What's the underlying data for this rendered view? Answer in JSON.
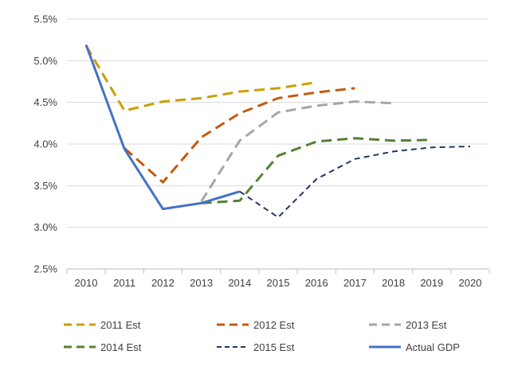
{
  "chart_data": {
    "type": "line",
    "x": [
      2010,
      2011,
      2012,
      2013,
      2014,
      2015,
      2016,
      2017,
      2018,
      2019,
      2020
    ],
    "x_tick_labels": [
      "2010",
      "2011",
      "2012",
      "2013",
      "2014",
      "2015",
      "2016",
      "2017",
      "2018",
      "2019",
      "2020"
    ],
    "y_tick_labels": [
      "2.5%",
      "3.0%",
      "3.5%",
      "4.0%",
      "4.5%",
      "5.0%",
      "5.5%"
    ],
    "y_ticks": [
      2.5,
      3.0,
      3.5,
      4.0,
      4.5,
      5.0,
      5.5
    ],
    "ylim": [
      2.5,
      5.5
    ],
    "xlim": [
      2010,
      2020
    ],
    "grid": "horizontal",
    "legend_position": "bottom",
    "series": [
      {
        "name": "2011 Est",
        "color": "#C9A000",
        "style": "dashed",
        "x": [
          2010,
          2011,
          2012,
          2013,
          2014,
          2015,
          2016
        ],
        "values": [
          5.18,
          4.4,
          4.51,
          4.55,
          4.63,
          4.67,
          4.74
        ]
      },
      {
        "name": "2012 Est",
        "color": "#C55A11",
        "style": "dashed",
        "x": [
          2011,
          2012,
          2013,
          2014,
          2015,
          2016,
          2017
        ],
        "values": [
          3.95,
          3.54,
          4.08,
          4.37,
          4.55,
          4.62,
          4.67
        ]
      },
      {
        "name": "2013 Est",
        "color": "#A6A6A6",
        "style": "dashed",
        "x": [
          2013,
          2014,
          2015,
          2016,
          2017,
          2018
        ],
        "values": [
          3.31,
          4.04,
          4.38,
          4.46,
          4.51,
          4.49
        ]
      },
      {
        "name": "2014 Est",
        "color": "#548235",
        "style": "dashed",
        "x": [
          2013,
          2014,
          2015,
          2016,
          2017,
          2018,
          2019
        ],
        "values": [
          3.29,
          3.32,
          3.86,
          4.03,
          4.07,
          4.04,
          4.05
        ]
      },
      {
        "name": "2015 Est",
        "color": "#203864",
        "style": "dashed-fine",
        "x": [
          2014,
          2015,
          2016,
          2017,
          2018,
          2019,
          2020
        ],
        "values": [
          3.43,
          3.12,
          3.58,
          3.82,
          3.91,
          3.96,
          3.97
        ]
      },
      {
        "name": "Actual GDP",
        "color": "#4472C4",
        "style": "solid",
        "x": [
          2010,
          2011,
          2012,
          2013,
          2014
        ],
        "values": [
          5.19,
          3.94,
          3.22,
          3.29,
          3.43
        ]
      }
    ]
  }
}
